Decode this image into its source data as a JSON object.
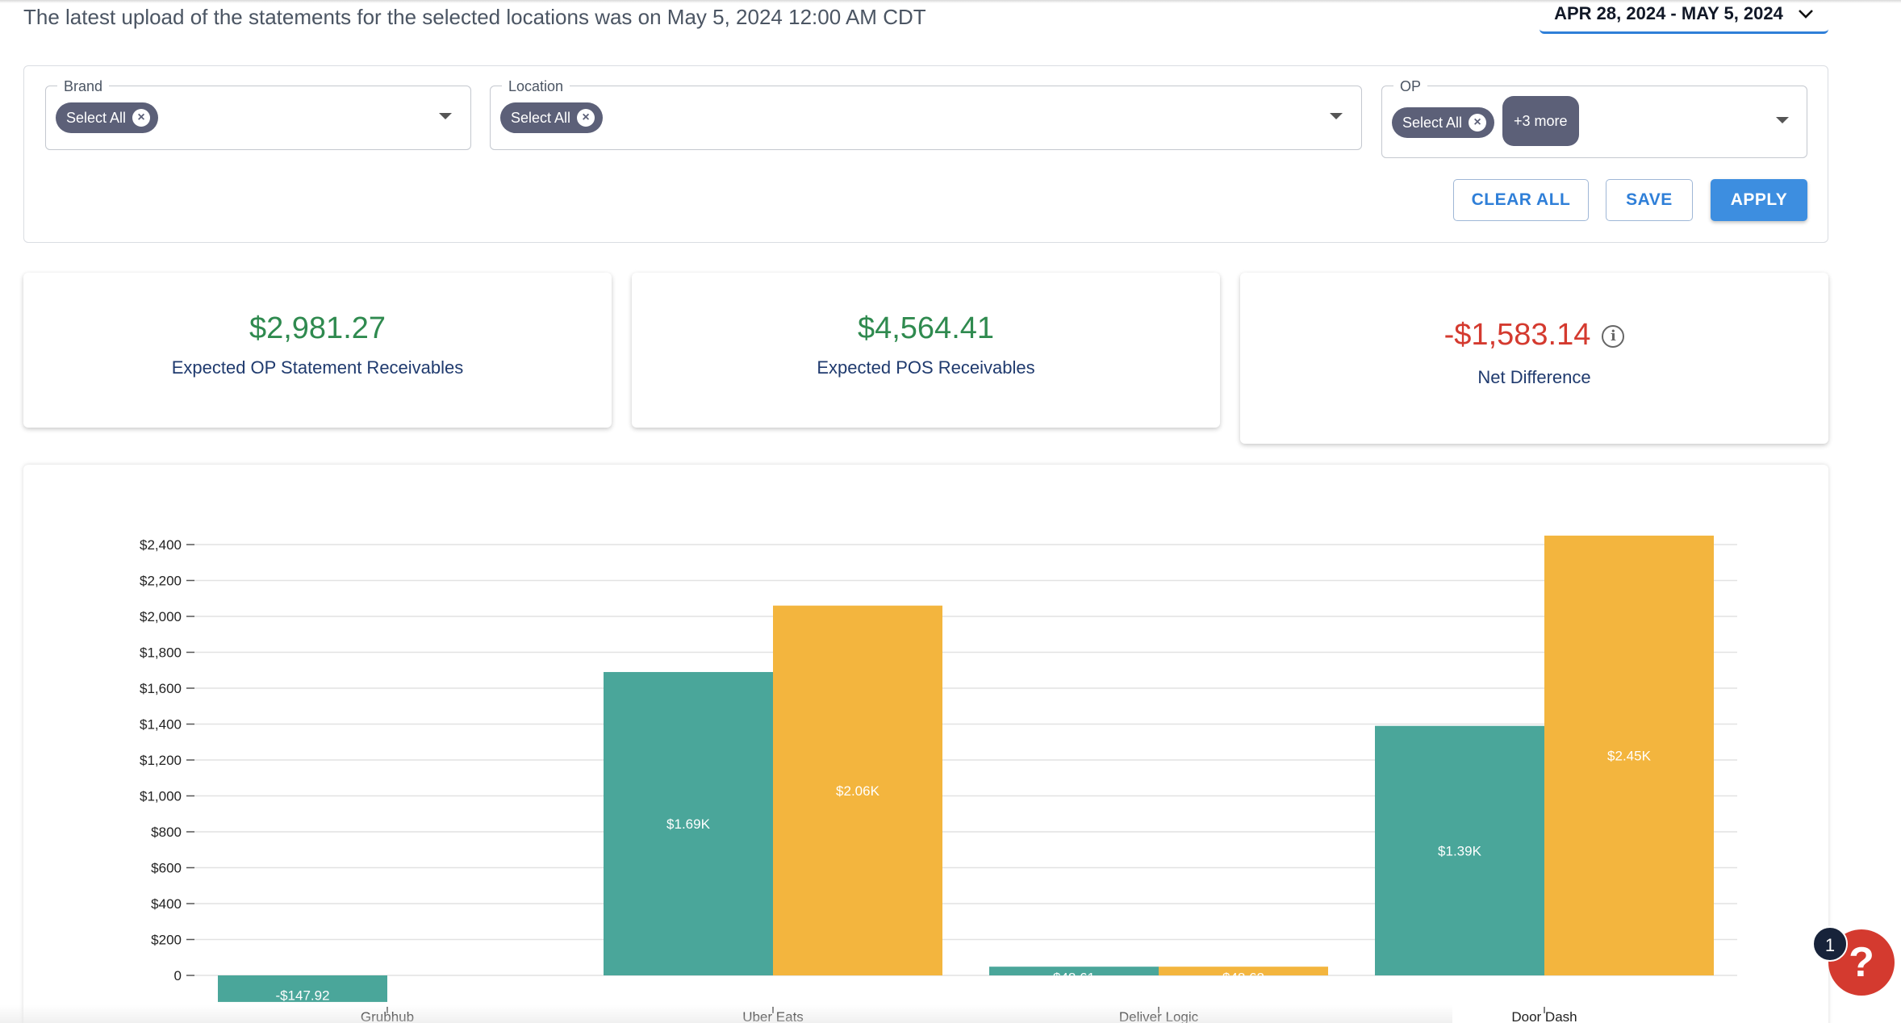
{
  "header": {
    "upload_note": "The latest upload of the statements for the selected locations was on May 5, 2024 12:00 AM CDT",
    "date_range": "APR 28, 2024 - MAY 5, 2024"
  },
  "filters": {
    "brand": {
      "label": "Brand",
      "chip": "Select All"
    },
    "location": {
      "label": "Location",
      "chip": "Select All"
    },
    "op": {
      "label": "OP",
      "chip": "Select All",
      "more": "+3 more"
    },
    "buttons": {
      "clear": "CLEAR ALL",
      "save": "SAVE",
      "apply": "APPLY"
    }
  },
  "summary": {
    "op_value": "$2,981.27",
    "op_label": "Expected OP Statement Receivables",
    "pos_value": "$4,564.41",
    "pos_label": "Expected POS Receivables",
    "net_value": "-$1,583.14",
    "net_label": "Net Difference",
    "info_icon": "info-icon"
  },
  "colors": {
    "op_series": "#4aa69a",
    "pos_series": "#f3b53e",
    "positive": "#2f8a4f",
    "negative": "#d43a2f",
    "primary": "#3d8ee0"
  },
  "chart_data": {
    "type": "bar",
    "categories": [
      "Grubhub",
      "Uber Eats",
      "Deliver Logic",
      "Door Dash"
    ],
    "series": [
      {
        "values": [
          -147.92,
          1690,
          48.61,
          1390
        ],
        "labels": [
          "-$147.92",
          "$1.69K",
          "$48.61",
          "$1.39K"
        ]
      },
      {
        "values": [
          0,
          2060,
          48.62,
          2450
        ],
        "labels": [
          "",
          "$2.06K",
          "$48.62",
          "$2.45K"
        ]
      }
    ],
    "yticks": [
      "0",
      "$200",
      "$400",
      "$600",
      "$800",
      "$1,000",
      "$1,200",
      "$1,400",
      "$1,600",
      "$1,800",
      "$2,000",
      "$2,200",
      "$2,400"
    ],
    "ylim": [
      -147.92,
      2450
    ],
    "grid": true
  },
  "help": {
    "glyph": "?",
    "badge": "1"
  }
}
